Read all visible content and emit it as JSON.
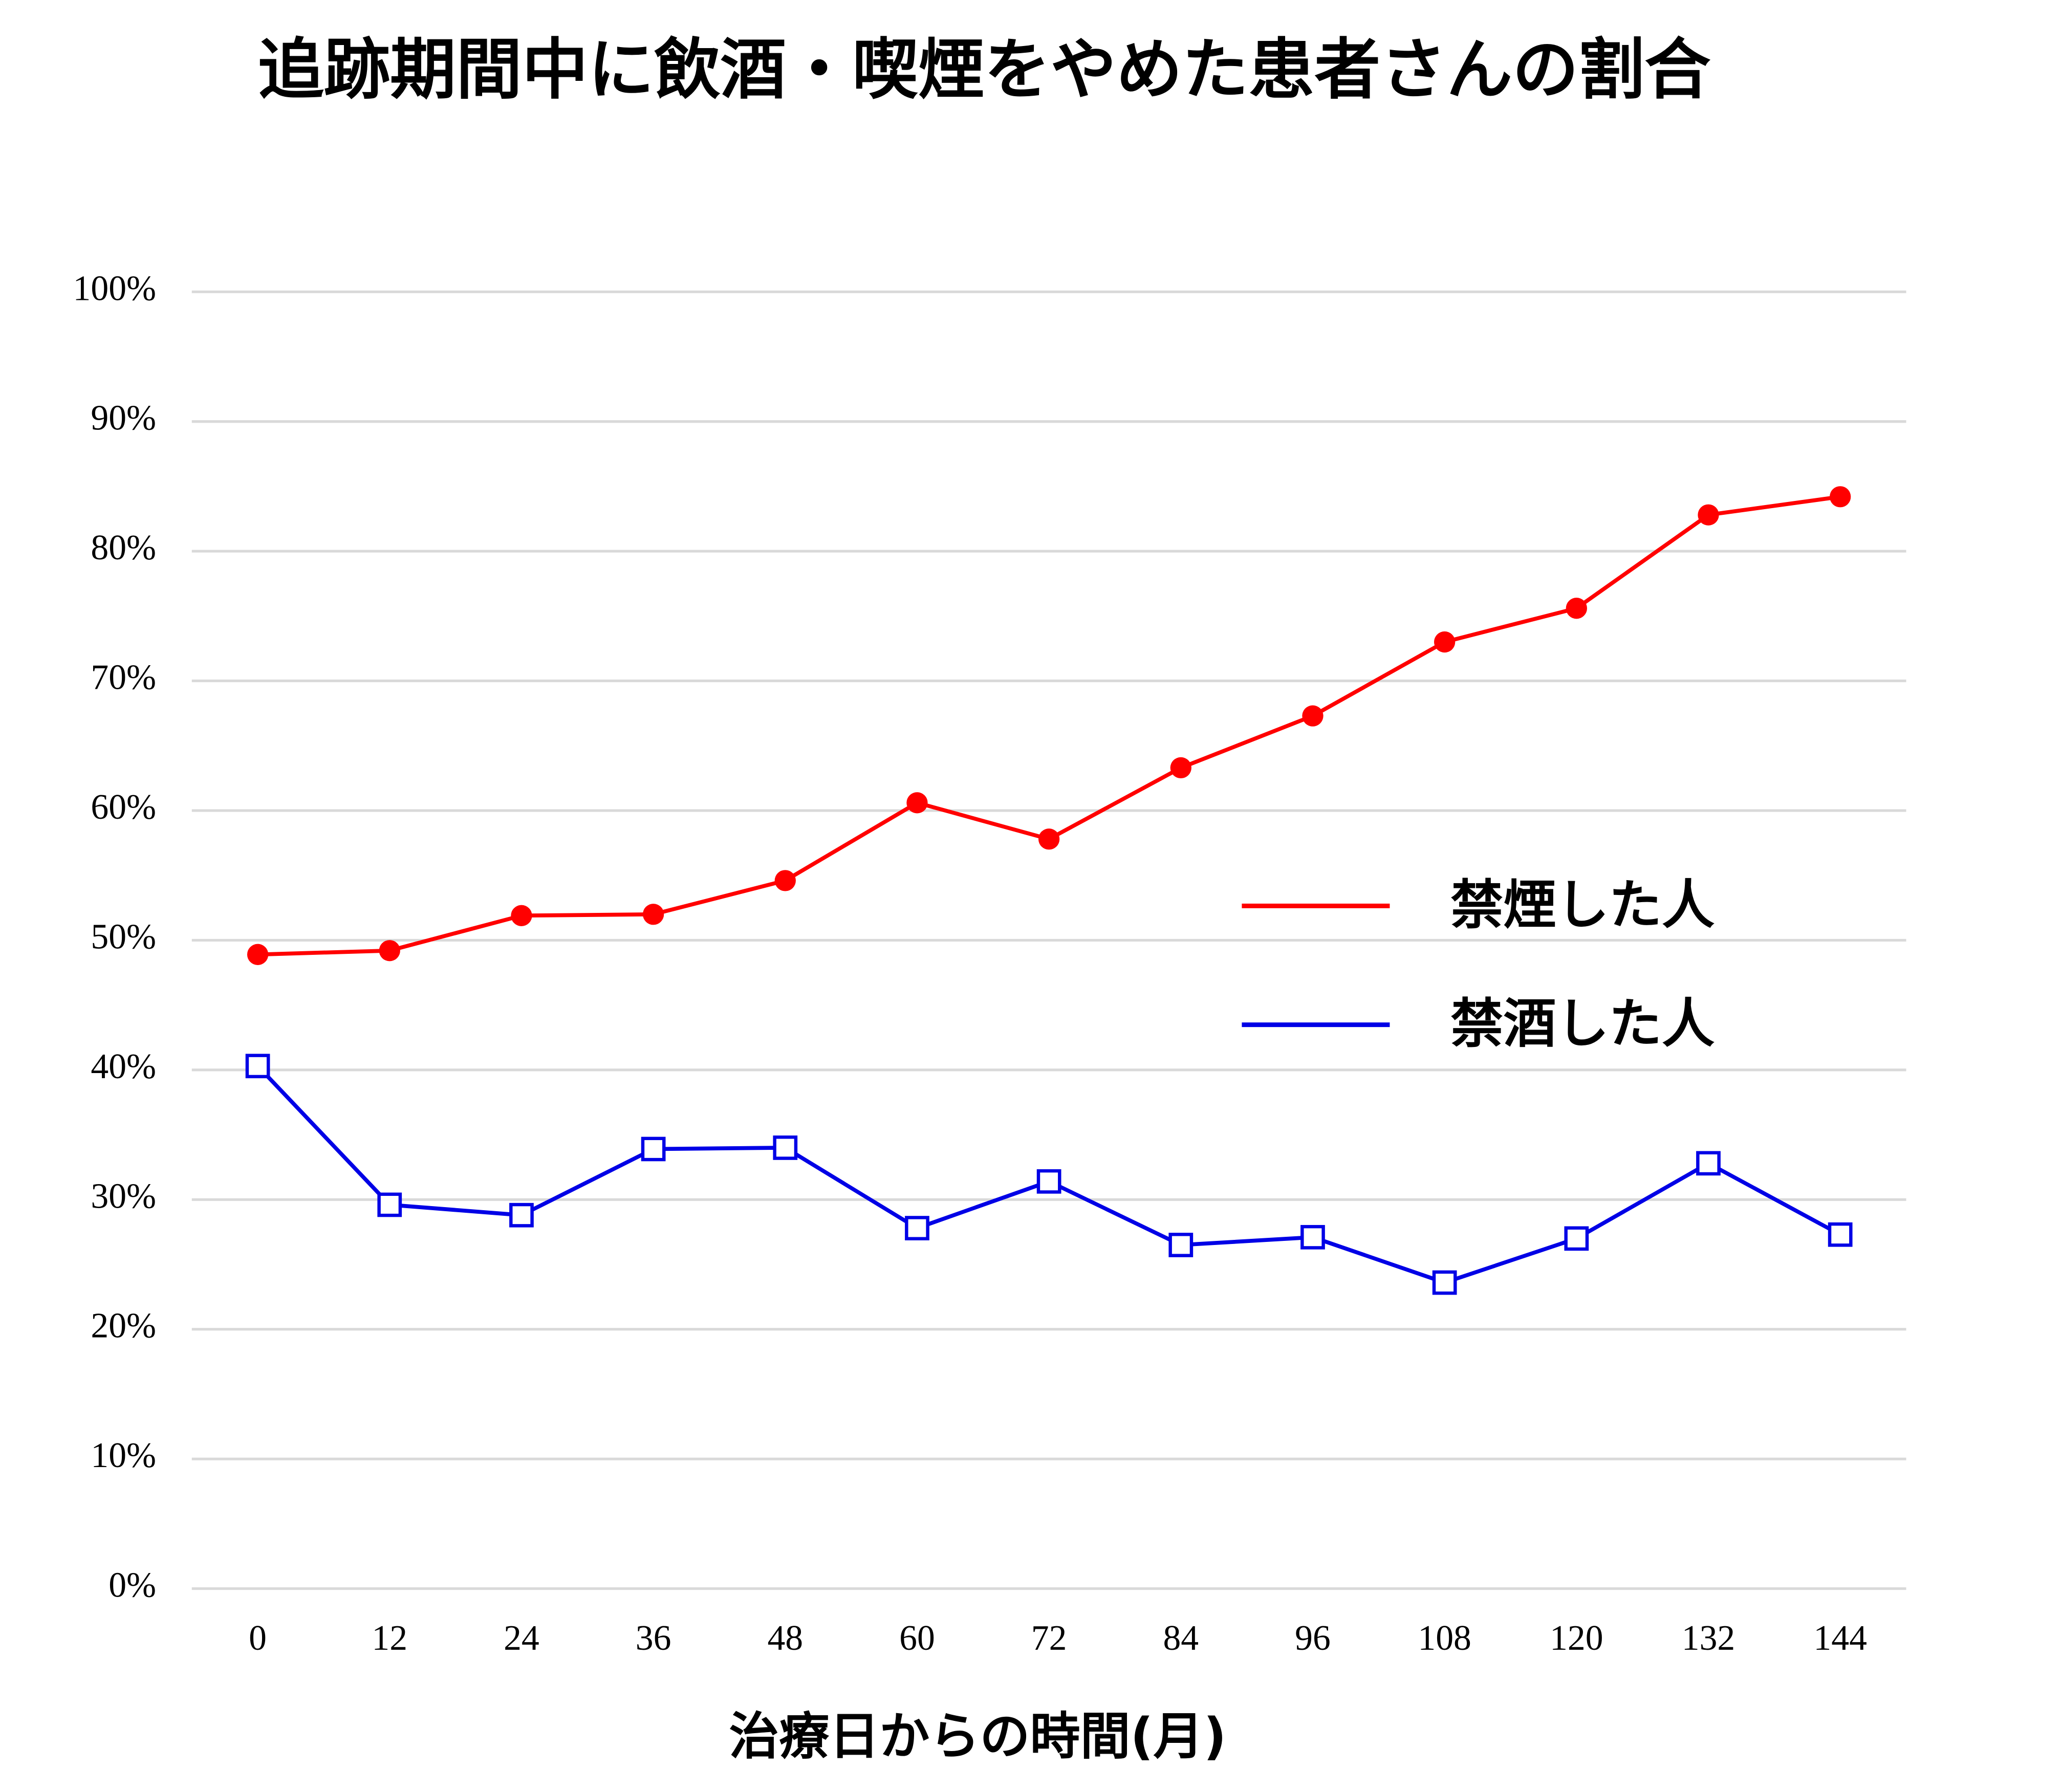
{
  "chart_data": {
    "type": "line",
    "title": "追跡期間中に飲酒・喫煙をやめた患者さんの割合",
    "x_label": "治療日からの時間(月)",
    "x": [
      0,
      12,
      24,
      36,
      48,
      60,
      72,
      84,
      96,
      108,
      120,
      132,
      144
    ],
    "xlim": [
      -6,
      150
    ],
    "xticks": [
      0,
      12,
      24,
      36,
      48,
      60,
      72,
      84,
      96,
      108,
      120,
      132,
      144
    ],
    "ylim": [
      0,
      100
    ],
    "yticks": [
      {
        "value": 0,
        "label": "0%"
      },
      {
        "value": 10,
        "label": "10%"
      },
      {
        "value": 20,
        "label": "20%"
      },
      {
        "value": 30,
        "label": "30%"
      },
      {
        "value": 40,
        "label": "40%"
      },
      {
        "value": 50,
        "label": "50%"
      },
      {
        "value": 60,
        "label": "60%"
      },
      {
        "value": 70,
        "label": "70%"
      },
      {
        "value": 80,
        "label": "80%"
      },
      {
        "value": 90,
        "label": "90%"
      },
      {
        "value": 100,
        "label": "100%"
      }
    ],
    "grid": true,
    "legend": "right",
    "series": [
      {
        "name": "禁煙した人",
        "color": "#ff0000",
        "marker": "circle",
        "values": [
          48.9,
          49.2,
          51.9,
          52.0,
          54.6,
          60.6,
          57.8,
          63.3,
          67.3,
          73.0,
          75.6,
          82.8,
          84.2
        ]
      },
      {
        "name": "禁酒した人",
        "color": "#0000e6",
        "marker": "square",
        "values": [
          40.3,
          29.6,
          28.8,
          33.9,
          34.0,
          27.8,
          31.4,
          26.5,
          27.1,
          23.6,
          27.0,
          32.8,
          27.3
        ]
      }
    ]
  }
}
